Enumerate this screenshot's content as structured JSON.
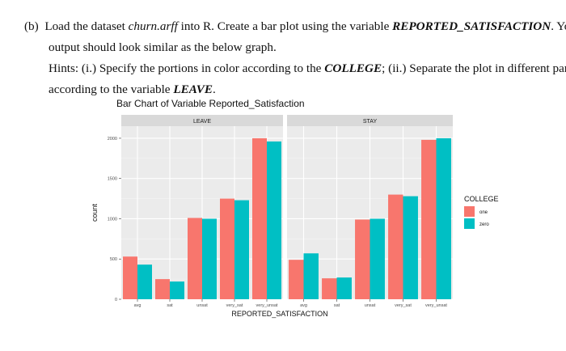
{
  "question": {
    "line1": {
      "label": "(b)",
      "pre": "Load the dataset ",
      "dataset": "churn.arff",
      "mid": " into R. Create a bar plot using the variable ",
      "variable": "REPORTED_SATISFACTION",
      "post": ". Your"
    },
    "line2": "output should look similar as the below graph.",
    "line3": {
      "pre": "Hints: (i.) Specify the portions in color according to the ",
      "college": "COLLEGE",
      "post": "; (ii.) Separate the plot in different panels"
    },
    "line4": {
      "pre": "according to the variable ",
      "leave": "LEAVE",
      "post": "."
    }
  },
  "chart_data": {
    "type": "bar",
    "title": "Bar Chart of Variable Reported_Satisfaction",
    "xlabel": "REPORTED_SATISFACTION",
    "ylabel": "count",
    "ylim": [
      0,
      2150
    ],
    "yticks": [
      0,
      500,
      1000,
      1500,
      2000
    ],
    "categories": [
      "avg",
      "sat",
      "unsat",
      "very_sat",
      "very_unsat"
    ],
    "legend": {
      "title": "COLLEGE",
      "position": "right",
      "entries": [
        {
          "name": "one",
          "color": "#F8766D"
        },
        {
          "name": "zero",
          "color": "#00BFC4"
        }
      ]
    },
    "panels": [
      {
        "label": "LEAVE",
        "series": [
          {
            "name": "one",
            "values": [
              530,
              250,
              1010,
              1250,
              2000
            ]
          },
          {
            "name": "zero",
            "values": [
              430,
              220,
              1000,
              1230,
              1960
            ]
          }
        ]
      },
      {
        "label": "STAY",
        "series": [
          {
            "name": "one",
            "values": [
              490,
              260,
              990,
              1300,
              1980
            ]
          },
          {
            "name": "zero",
            "values": [
              570,
              270,
              1000,
              1280,
              2000
            ]
          }
        ]
      }
    ],
    "grid": true
  }
}
